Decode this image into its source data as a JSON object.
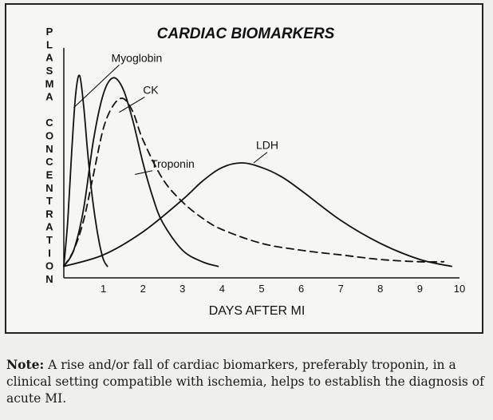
{
  "chart_data": {
    "type": "line",
    "title": "CARDIAC BIOMARKERS",
    "xlabel": "DAYS AFTER MI",
    "ylabel": "PLASMA CONCENTRATION",
    "xlim": [
      0,
      10
    ],
    "ylim": [
      0,
      1
    ],
    "xticks": [
      1,
      2,
      3,
      4,
      5,
      6,
      7,
      8,
      9,
      10
    ],
    "grid": false,
    "series": [
      {
        "name": "Myoglobin",
        "style": "solid",
        "x": [
          0.0,
          0.1,
          0.2,
          0.3,
          0.4,
          0.5,
          0.6,
          0.7,
          0.8,
          0.9,
          1.0,
          1.1
        ],
        "y": [
          0.05,
          0.25,
          0.55,
          0.8,
          0.88,
          0.75,
          0.55,
          0.38,
          0.25,
          0.15,
          0.08,
          0.05
        ]
      },
      {
        "name": "CK",
        "style": "solid",
        "x": [
          0.0,
          0.25,
          0.5,
          0.75,
          1.0,
          1.25,
          1.5,
          1.75,
          2.0,
          2.25,
          2.5,
          3.0,
          3.5,
          3.9
        ],
        "y": [
          0.05,
          0.12,
          0.3,
          0.6,
          0.8,
          0.87,
          0.82,
          0.68,
          0.5,
          0.35,
          0.24,
          0.12,
          0.07,
          0.05
        ]
      },
      {
        "name": "Troponin",
        "style": "dashed",
        "x": [
          0.0,
          0.25,
          0.5,
          0.75,
          1.0,
          1.25,
          1.5,
          1.75,
          2.0,
          2.5,
          3.0,
          3.5,
          4.0,
          5.0,
          6.0,
          7.0,
          8.0,
          9.0,
          9.6
        ],
        "y": [
          0.05,
          0.12,
          0.25,
          0.45,
          0.65,
          0.75,
          0.78,
          0.72,
          0.6,
          0.43,
          0.33,
          0.26,
          0.21,
          0.15,
          0.12,
          0.1,
          0.08,
          0.07,
          0.07
        ]
      },
      {
        "name": "LDH",
        "style": "solid",
        "x": [
          0.0,
          1.0,
          2.0,
          3.0,
          3.5,
          4.0,
          4.5,
          5.0,
          5.5,
          6.0,
          7.0,
          8.0,
          9.0,
          9.8
        ],
        "y": [
          0.05,
          0.1,
          0.2,
          0.34,
          0.42,
          0.48,
          0.5,
          0.48,
          0.44,
          0.38,
          0.25,
          0.15,
          0.08,
          0.05
        ]
      }
    ],
    "annotations": [
      "Myoglobin",
      "CK",
      "Troponin",
      "LDH"
    ]
  },
  "note": {
    "label": "Note:",
    "text": " A rise and/or fall of cardiac biomarkers, preferably troponin, in a clinical setting compatible with ischemia, helps to establish the diagnosis of acute MI."
  }
}
